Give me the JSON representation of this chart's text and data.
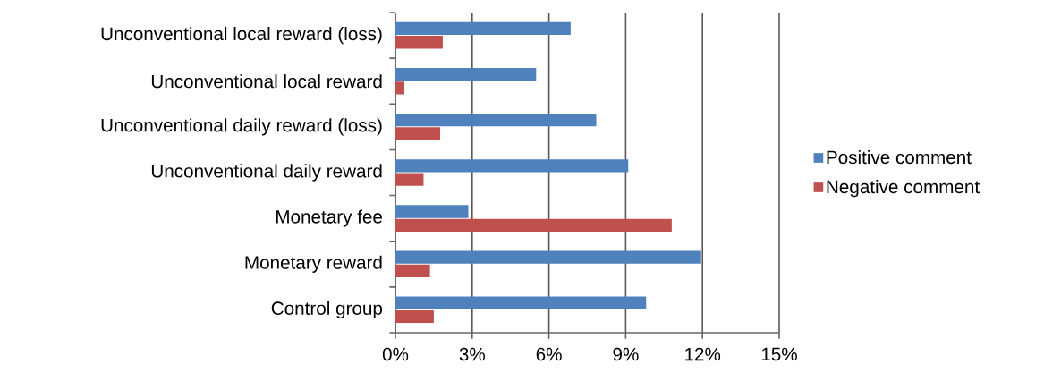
{
  "chart_data": {
    "type": "bar",
    "orientation": "horizontal",
    "categories": [
      "Unconventional local reward (loss)",
      "Unconventional local reward",
      "Unconventional daily reward (loss)",
      "Unconventional daily reward",
      "Monetary fee",
      "Monetary reward",
      "Control group"
    ],
    "series": [
      {
        "name": "Positive comment",
        "color": "#4f81bd",
        "values": [
          6.85,
          5.5,
          7.85,
          9.1,
          2.85,
          11.95,
          9.8
        ]
      },
      {
        "name": "Negative comment",
        "color": "#c0504d",
        "values": [
          1.85,
          0.35,
          1.75,
          1.1,
          10.8,
          1.35,
          1.5
        ]
      }
    ],
    "xlim": [
      0,
      15
    ],
    "xticks": [
      {
        "value": 0,
        "label": "0%"
      },
      {
        "value": 3,
        "label": "3%"
      },
      {
        "value": 6,
        "label": "6%"
      },
      {
        "value": 9,
        "label": "9%"
      },
      {
        "value": 12,
        "label": "12%"
      },
      {
        "value": 15,
        "label": "15%"
      }
    ],
    "grid": "x",
    "legend": "right"
  }
}
